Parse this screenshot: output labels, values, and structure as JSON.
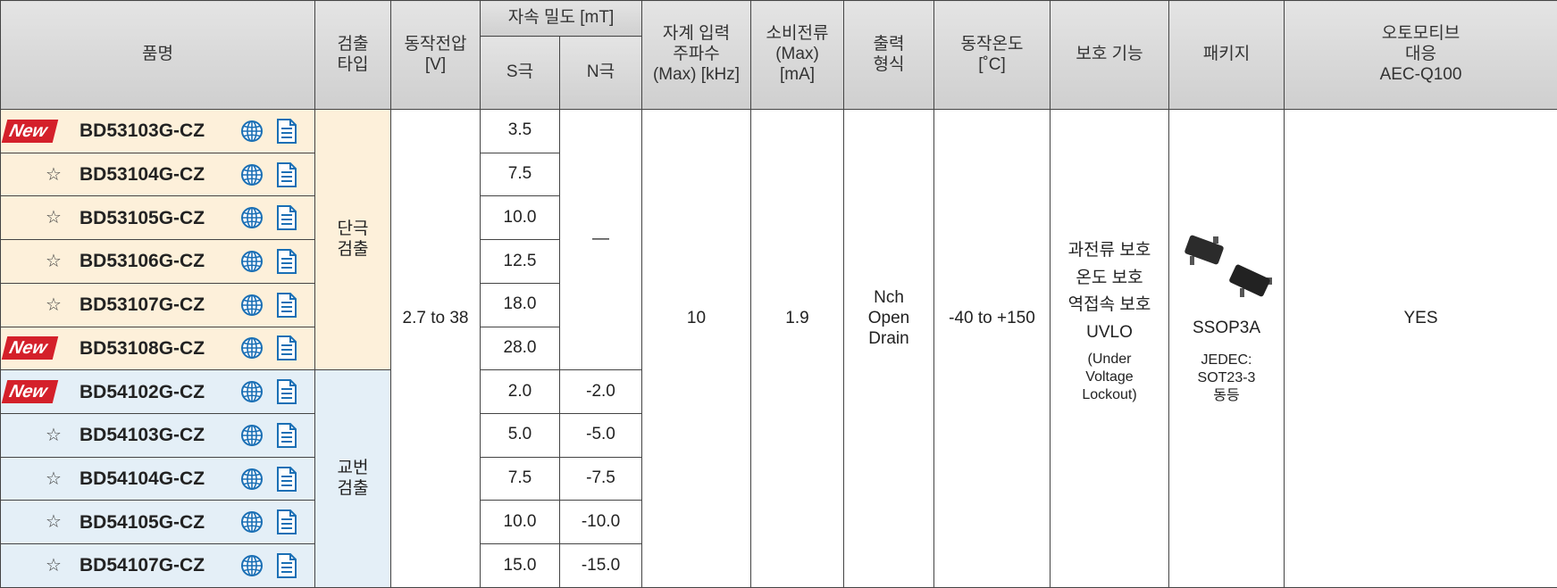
{
  "header": {
    "name": "품명",
    "type": [
      "검출",
      "타입"
    ],
    "voltage": [
      "동작전압",
      "[V]"
    ],
    "flux": "자속 밀도 [mT]",
    "s_pole": "S극",
    "n_pole": "N극",
    "frequency": [
      "자계 입력",
      "주파수",
      "(Max) [kHz]"
    ],
    "current": [
      "소비전류",
      "(Max)",
      "[mA]"
    ],
    "output": [
      "출력",
      "형식"
    ],
    "temperature": [
      "동작온도",
      "[˚C]"
    ],
    "protection": "보호 기능",
    "package": "패키지",
    "automotive": [
      "오토모티브",
      "대응",
      "AEC-Q100"
    ]
  },
  "groups": [
    {
      "type": [
        "단극",
        "검출"
      ],
      "n_value": "—"
    },
    {
      "type": [
        "교번",
        "검출"
      ]
    }
  ],
  "rows": [
    {
      "marker": "New",
      "name": "BD53103G-CZ",
      "s": "3.5"
    },
    {
      "marker": "☆",
      "name": "BD53104G-CZ",
      "s": "7.5"
    },
    {
      "marker": "☆",
      "name": "BD53105G-CZ",
      "s": "10.0"
    },
    {
      "marker": "☆",
      "name": "BD53106G-CZ",
      "s": "12.5"
    },
    {
      "marker": "☆",
      "name": "BD53107G-CZ",
      "s": "18.0"
    },
    {
      "marker": "New",
      "name": "BD53108G-CZ",
      "s": "28.0"
    },
    {
      "marker": "New",
      "name": "BD54102G-CZ",
      "s": "2.0",
      "n": "-2.0"
    },
    {
      "marker": "☆",
      "name": "BD54103G-CZ",
      "s": "5.0",
      "n": "-5.0"
    },
    {
      "marker": "☆",
      "name": "BD54104G-CZ",
      "s": "7.5",
      "n": "-7.5"
    },
    {
      "marker": "☆",
      "name": "BD54105G-CZ",
      "s": "10.0",
      "n": "-10.0"
    },
    {
      "marker": "☆",
      "name": "BD54107G-CZ",
      "s": "15.0",
      "n": "-15.0"
    }
  ],
  "common": {
    "voltage": "2.7 to 38",
    "frequency": "10",
    "current": "1.9",
    "output": [
      "Nch",
      "Open",
      "Drain"
    ],
    "temperature": "-40 to +150",
    "protection": [
      "과전류 보호",
      "온도 보호",
      "역접속 보호",
      "UVLO"
    ],
    "protection_note": [
      "(Under",
      "Voltage",
      "Lockout)"
    ],
    "package": "SSOP3A",
    "package_note": [
      "JEDEC:",
      "SOT23-3",
      "동등"
    ],
    "automotive": "YES"
  }
}
